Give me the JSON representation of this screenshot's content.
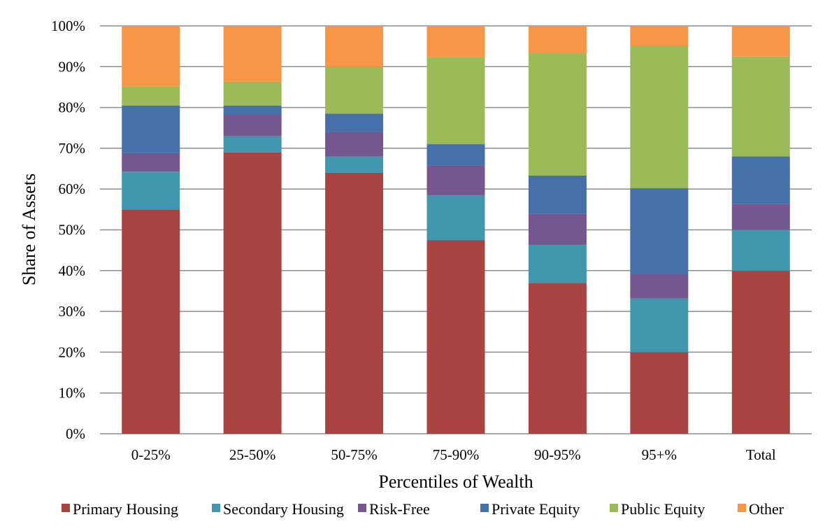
{
  "chart_data": {
    "type": "bar",
    "stacked": true,
    "xlabel": "Percentiles of Wealth",
    "ylabel": "Share of Assets",
    "ylim": [
      0,
      100
    ],
    "y_ticks": [
      "0%",
      "10%",
      "20%",
      "30%",
      "40%",
      "50%",
      "60%",
      "70%",
      "80%",
      "90%",
      "100%"
    ],
    "grid": "horizontal",
    "legend_position": "bottom",
    "categories": [
      "0-25%",
      "25-50%",
      "50-75%",
      "75-90%",
      "90-95%",
      "95+%",
      "Total"
    ],
    "series": [
      {
        "name": "Primary Housing",
        "color": "#a94442",
        "values": [
          55,
          69,
          64,
          47.5,
          37,
          20,
          40
        ]
      },
      {
        "name": "Secondary Housing",
        "color": "#4198ae",
        "values": [
          9.3,
          4,
          4,
          11,
          9.3,
          13.2,
          10
        ]
      },
      {
        "name": "Risk-Free",
        "color": "#75578f",
        "values": [
          4.5,
          5.3,
          6,
          7.3,
          7.7,
          6,
          6.3
        ]
      },
      {
        "name": "Private Equity",
        "color": "#4571a8",
        "values": [
          11.7,
          2.2,
          4.5,
          5.2,
          9.3,
          21,
          11.7
        ]
      },
      {
        "name": "Public Equity",
        "color": "#9bbb59",
        "values": [
          4.7,
          5.8,
          11.5,
          21.3,
          30,
          35,
          24.5
        ]
      },
      {
        "name": "Other",
        "color": "#f79646",
        "values": [
          14.8,
          13.7,
          10,
          7.7,
          6.7,
          4.8,
          7.5
        ]
      }
    ]
  }
}
